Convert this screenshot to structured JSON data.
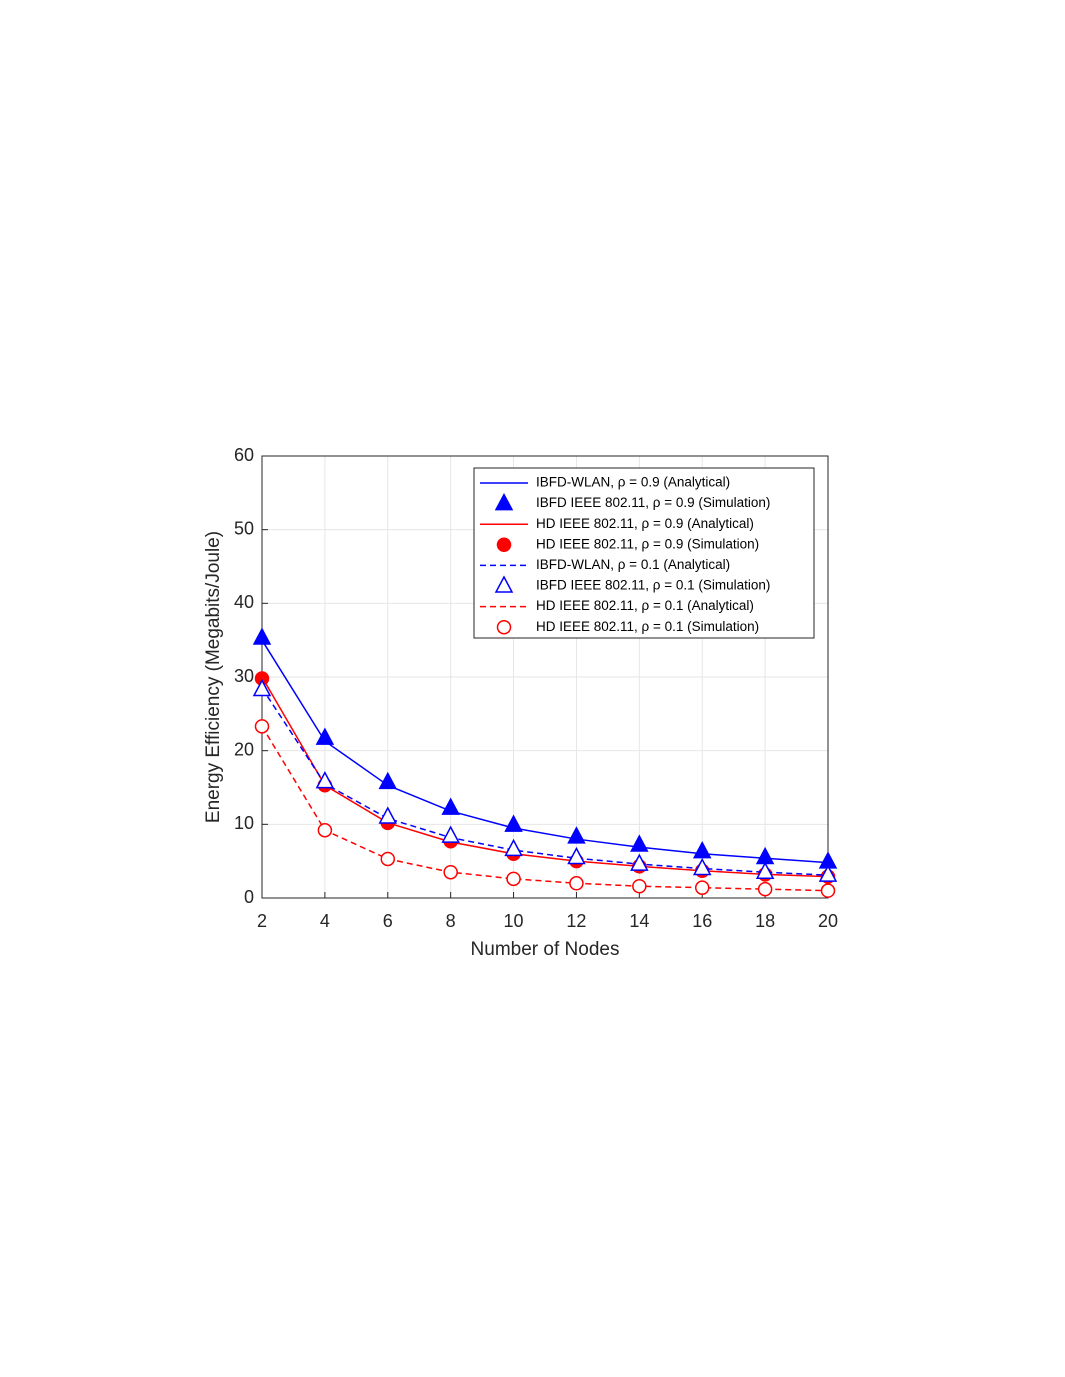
{
  "chart_data": {
    "type": "line",
    "x_label": "Number of Nodes",
    "y_label": "Energy Efficiency (Megabits/Joule)",
    "x": [
      2,
      4,
      6,
      8,
      10,
      12,
      14,
      16,
      18,
      20
    ],
    "xlim": [
      2,
      20
    ],
    "xticks": [
      2,
      4,
      6,
      8,
      10,
      12,
      14,
      16,
      18,
      20
    ],
    "ylim": [
      0,
      60
    ],
    "yticks": [
      0,
      10,
      20,
      30,
      40,
      50,
      60
    ],
    "grid": true,
    "legend": "upper right",
    "series": [
      {
        "name": "IBFD-WLAN, ρ = 0.9 (Analytical)",
        "color": "#0000ff",
        "line": "solid",
        "marker": "none",
        "values": [
          35,
          21.3,
          15.3,
          11.8,
          9.5,
          8,
          6.9,
          6,
          5.4,
          4.8
        ]
      },
      {
        "name": "IBFD IEEE 802.11, ρ = 0.9 (Simulation)",
        "color": "#0000ff",
        "line": "none",
        "marker": "triangle",
        "filled": true,
        "values": [
          35.3,
          21.7,
          15.7,
          12.2,
          9.9,
          8.3,
          7.2,
          6.3,
          5.5,
          4.9
        ]
      },
      {
        "name": "HD IEEE 802.11, ρ = 0.9 (Analytical)",
        "color": "#ff0000",
        "line": "solid",
        "marker": "none",
        "values": [
          30,
          15.3,
          10.2,
          7.6,
          6,
          5,
          4.3,
          3.7,
          3.2,
          2.9
        ]
      },
      {
        "name": "HD IEEE 802.11, ρ = 0.9 (Simulation)",
        "color": "#ff0000",
        "line": "none",
        "marker": "circle",
        "filled": true,
        "values": [
          29.8,
          15.3,
          10.2,
          7.7,
          6,
          5,
          4.3,
          3.7,
          3.2,
          2.9
        ]
      },
      {
        "name": "IBFD-WLAN, ρ = 0.1 (Analytical)",
        "color": "#0000ff",
        "line": "dashed",
        "marker": "none",
        "values": [
          28.5,
          15.5,
          10.8,
          8.2,
          6.5,
          5.4,
          4.6,
          4,
          3.5,
          3.1
        ]
      },
      {
        "name": "IBFD IEEE 802.11, ρ = 0.1 (Simulation)",
        "color": "#0000ff",
        "line": "none",
        "marker": "triangle",
        "filled": false,
        "values": [
          28.3,
          15.8,
          11,
          8.4,
          6.6,
          5.5,
          4.6,
          4,
          3.5,
          3.1
        ]
      },
      {
        "name": "HD IEEE 802.11, ρ = 0.1 (Analytical)",
        "color": "#ff0000",
        "line": "dashed",
        "marker": "none",
        "values": [
          23.3,
          9.2,
          5.3,
          3.5,
          2.6,
          2,
          1.6,
          1.4,
          1.2,
          1.0
        ]
      },
      {
        "name": "HD IEEE 802.11, ρ = 0.1 (Simulation)",
        "color": "#ff0000",
        "line": "none",
        "marker": "circle",
        "filled": false,
        "values": [
          23.3,
          9.2,
          5.3,
          3.5,
          2.6,
          2,
          1.6,
          1.4,
          1.2,
          1.0
        ]
      }
    ]
  }
}
